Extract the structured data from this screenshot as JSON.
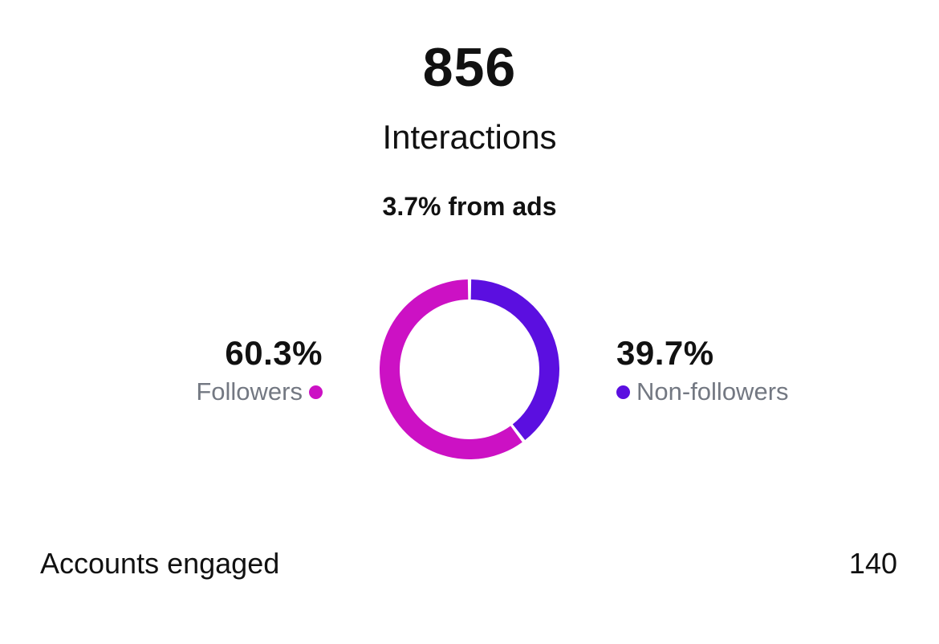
{
  "summary": {
    "total": "856",
    "total_label": "Interactions",
    "ads_note": "3.7% from ads"
  },
  "chart_data": {
    "type": "pie",
    "categories": [
      "Followers",
      "Non-followers"
    ],
    "values": [
      60.3,
      39.7
    ],
    "value_labels": [
      "60.3%",
      "39.7%"
    ],
    "colors": [
      "#cc11c4",
      "#5b0fe0"
    ],
    "title": "",
    "legend_placement": "sides"
  },
  "legend": {
    "followers": {
      "percent": "60.3%",
      "label": "Followers",
      "color": "#cc11c4"
    },
    "non_followers": {
      "percent": "39.7%",
      "label": "Non-followers",
      "color": "#5b0fe0"
    }
  },
  "accounts_engaged": {
    "label": "Accounts engaged",
    "value": "140"
  }
}
